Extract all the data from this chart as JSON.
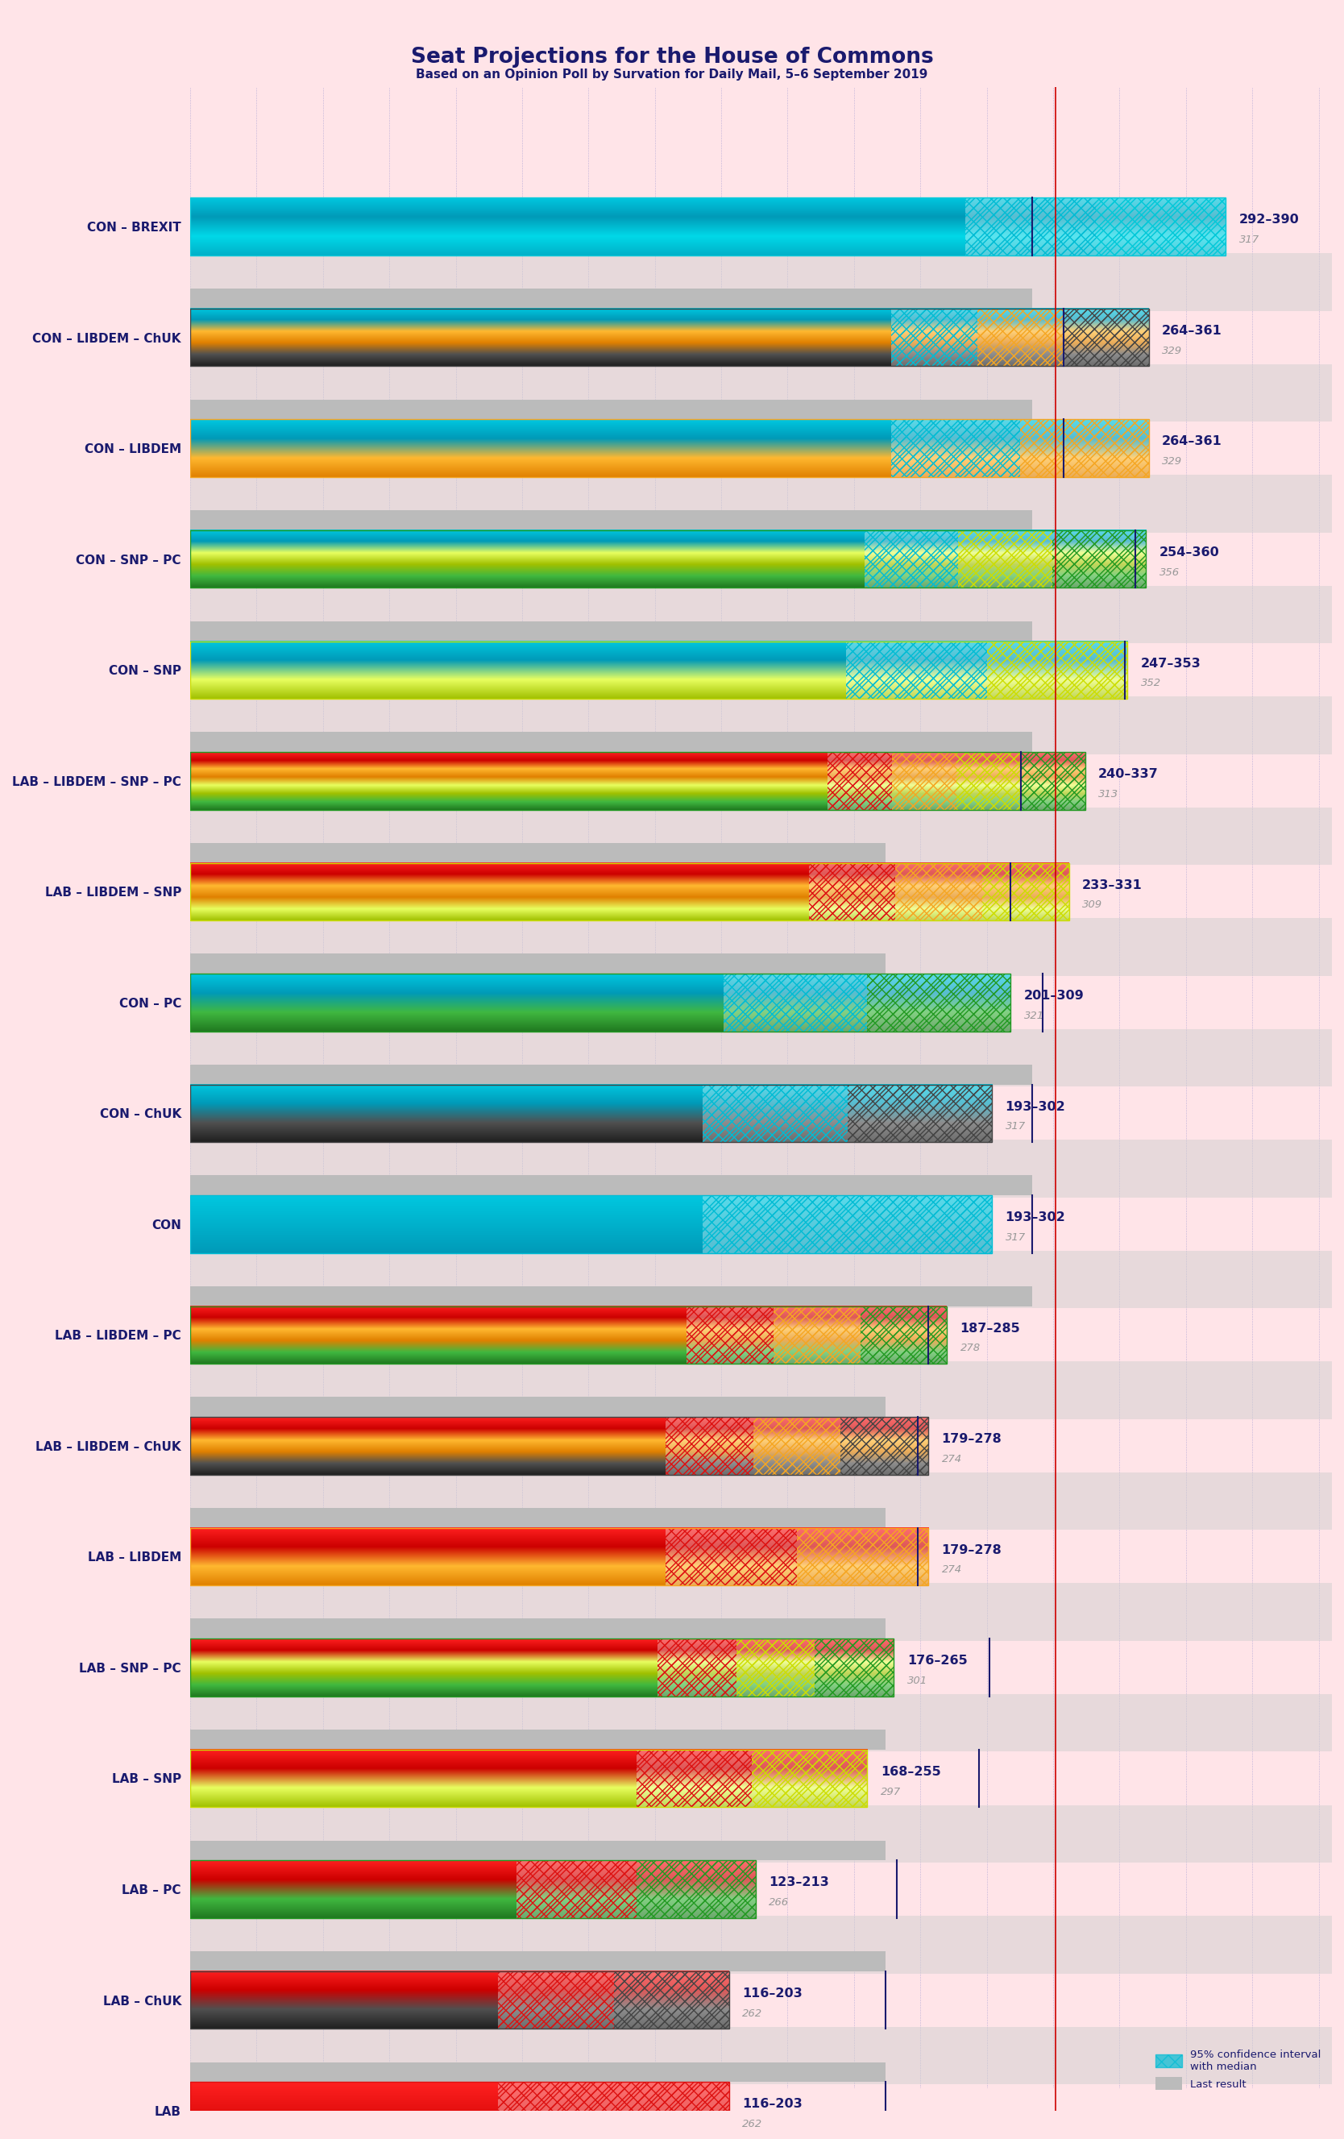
{
  "title": "Seat Projections for the House of Commons",
  "subtitle": "Based on an Opinion Poll by Survation for Daily Mail, 5–6 September 2019",
  "bg_color": "#FFE4E8",
  "title_color": "#1a1a6e",
  "majority_line": 326,
  "majority_line_color": "#cc0000",
  "median_line_color": "#1a1a6e",
  "xlim": [
    0,
    430
  ],
  "coalitions": [
    {
      "name": "CON – BREXIT",
      "ci_low": 292,
      "ci_high": 390,
      "median": 317,
      "last_result": 317,
      "parties": [
        "CON",
        "BREXIT"
      ]
    },
    {
      "name": "CON – LIBDEM – ChUK",
      "ci_low": 264,
      "ci_high": 361,
      "median": 329,
      "last_result": 317,
      "parties": [
        "CON",
        "LIBDEM",
        "ChUK"
      ]
    },
    {
      "name": "CON – LIBDEM",
      "ci_low": 264,
      "ci_high": 361,
      "median": 329,
      "last_result": 317,
      "parties": [
        "CON",
        "LIBDEM"
      ]
    },
    {
      "name": "CON – SNP – PC",
      "ci_low": 254,
      "ci_high": 360,
      "median": 356,
      "last_result": 317,
      "parties": [
        "CON",
        "SNP",
        "PC"
      ]
    },
    {
      "name": "CON – SNP",
      "ci_low": 247,
      "ci_high": 353,
      "median": 352,
      "last_result": 317,
      "parties": [
        "CON",
        "SNP"
      ]
    },
    {
      "name": "LAB – LIBDEM – SNP – PC",
      "ci_low": 240,
      "ci_high": 337,
      "median": 313,
      "last_result": 262,
      "parties": [
        "LAB",
        "LIBDEM",
        "SNP",
        "PC"
      ]
    },
    {
      "name": "LAB – LIBDEM – SNP",
      "ci_low": 233,
      "ci_high": 331,
      "median": 309,
      "last_result": 262,
      "parties": [
        "LAB",
        "LIBDEM",
        "SNP"
      ]
    },
    {
      "name": "CON – PC",
      "ci_low": 201,
      "ci_high": 309,
      "median": 321,
      "last_result": 317,
      "parties": [
        "CON",
        "PC"
      ]
    },
    {
      "name": "CON – ChUK",
      "ci_low": 193,
      "ci_high": 302,
      "median": 317,
      "last_result": 317,
      "parties": [
        "CON",
        "ChUK"
      ]
    },
    {
      "name": "CON",
      "ci_low": 193,
      "ci_high": 302,
      "median": 317,
      "last_result": 317,
      "parties": [
        "CON"
      ]
    },
    {
      "name": "LAB – LIBDEM – PC",
      "ci_low": 187,
      "ci_high": 285,
      "median": 278,
      "last_result": 262,
      "parties": [
        "LAB",
        "LIBDEM",
        "PC"
      ]
    },
    {
      "name": "LAB – LIBDEM – ChUK",
      "ci_low": 179,
      "ci_high": 278,
      "median": 274,
      "last_result": 262,
      "parties": [
        "LAB",
        "LIBDEM",
        "ChUK"
      ]
    },
    {
      "name": "LAB – LIBDEM",
      "ci_low": 179,
      "ci_high": 278,
      "median": 274,
      "last_result": 262,
      "parties": [
        "LAB",
        "LIBDEM"
      ]
    },
    {
      "name": "LAB – SNP – PC",
      "ci_low": 176,
      "ci_high": 265,
      "median": 301,
      "last_result": 262,
      "parties": [
        "LAB",
        "SNP",
        "PC"
      ]
    },
    {
      "name": "LAB – SNP",
      "ci_low": 168,
      "ci_high": 255,
      "median": 297,
      "last_result": 262,
      "parties": [
        "LAB",
        "SNP"
      ]
    },
    {
      "name": "LAB – PC",
      "ci_low": 123,
      "ci_high": 213,
      "median": 266,
      "last_result": 262,
      "parties": [
        "LAB",
        "PC"
      ]
    },
    {
      "name": "LAB – ChUK",
      "ci_low": 116,
      "ci_high": 203,
      "median": 262,
      "last_result": 262,
      "parties": [
        "LAB",
        "ChUK"
      ]
    },
    {
      "name": "LAB",
      "ci_low": 116,
      "ci_high": 203,
      "median": 262,
      "last_result": 262,
      "parties": [
        "LAB"
      ]
    }
  ],
  "party_colors": {
    "CON": [
      "#00c8e0",
      "#009ab8"
    ],
    "BREXIT": [
      "#00d8e8",
      "#00b0c8"
    ],
    "LIBDEM": [
      "#ffb830",
      "#e08000"
    ],
    "SNP": [
      "#e8ff60",
      "#a0c000"
    ],
    "PC": [
      "#40b840",
      "#207820"
    ],
    "LAB": [
      "#ff2020",
      "#cc0000"
    ],
    "ChUK": [
      "#505050",
      "#202020"
    ]
  },
  "party_hatch_colors": {
    "CON": "#00bcd4",
    "BREXIT": "#00c8d8",
    "LIBDEM": "#f5a623",
    "SNP": "#ccdd00",
    "PC": "#229922",
    "LAB": "#dd1111",
    "ChUK": "#444444"
  },
  "grid_color": "#bbbbbb",
  "last_result_color": "#bbbbbb",
  "range_text_color": "#1a1a6e",
  "median_text_color": "#999999"
}
